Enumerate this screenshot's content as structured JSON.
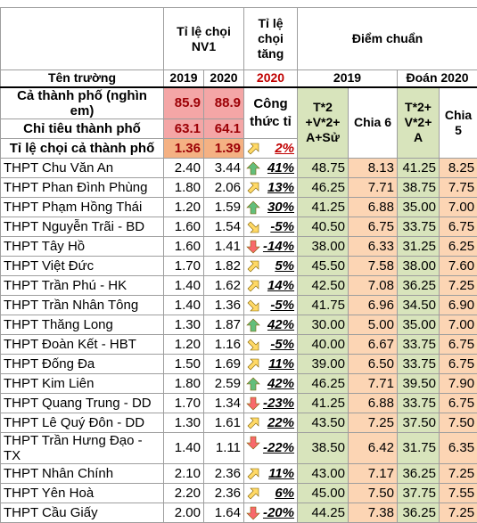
{
  "table": {
    "header": {
      "nv1": "Tỉ lệ chọi NV1",
      "tang": "Tỉ lệ chọi tăng",
      "diem": "Điểm chuẩn",
      "ten": "Tên trường",
      "y2019": "2019",
      "y2020": "2020",
      "tang_year": "2020",
      "d2019": "2019",
      "d2020": "Đoán 2020"
    },
    "formula": "Công thức tỉ",
    "score_headers": [
      "T*2\n+V*2+\nA+Sử",
      "Chia 6",
      "T*2+\nV*2+\nA",
      "Chia 5"
    ],
    "summary": [
      {
        "name": "Cả thành phố (nghìn em)",
        "v2019": "85.9",
        "v2020": "88.9"
      },
      {
        "name": "Chỉ tiêu thành phố",
        "v2019": "63.1",
        "v2020": "64.1"
      },
      {
        "name": "Tỉ lệ chọi cả thành phố",
        "v2019": "1.36",
        "v2020": "1.39",
        "change": "2%"
      }
    ],
    "rows": [
      [
        "THPT Chu Văn An",
        "2.40",
        "3.44",
        "41%",
        "48.75",
        "8.13",
        "41.25",
        "8.25"
      ],
      [
        "THPT Phan Đình Phùng",
        "1.80",
        "2.06",
        "13%",
        "46.25",
        "7.71",
        "38.75",
        "7.75"
      ],
      [
        "THPT Phạm Hồng Thái",
        "1.20",
        "1.59",
        "30%",
        "41.25",
        "6.88",
        "35.00",
        "7.00"
      ],
      [
        "THPT Nguyễn Trãi - BD",
        "1.60",
        "1.54",
        "-5%",
        "40.50",
        "6.75",
        "33.75",
        "6.75"
      ],
      [
        "THPT Tây Hồ",
        "1.60",
        "1.41",
        "-14%",
        "38.00",
        "6.33",
        "31.25",
        "6.25"
      ],
      [
        "THPT Việt Đức",
        "1.70",
        "1.82",
        "5%",
        "45.50",
        "7.58",
        "38.00",
        "7.60"
      ],
      [
        "THPT Trần Phú - HK",
        "1.40",
        "1.62",
        "14%",
        "42.50",
        "7.08",
        "36.25",
        "7.25"
      ],
      [
        "THPT Trần Nhân Tông",
        "1.40",
        "1.36",
        "-5%",
        "41.75",
        "6.96",
        "34.50",
        "6.90"
      ],
      [
        "THPT Thăng Long",
        "1.30",
        "1.87",
        "42%",
        "30.00",
        "5.00",
        "35.00",
        "7.00"
      ],
      [
        "THPT Đoàn Kết - HBT",
        "1.20",
        "1.16",
        "-5%",
        "40.00",
        "6.67",
        "33.75",
        "6.75"
      ],
      [
        "THPT Đống Đa",
        "1.50",
        "1.69",
        "11%",
        "39.00",
        "6.50",
        "33.75",
        "6.75"
      ],
      [
        "THPT Kim Liên",
        "1.80",
        "2.59",
        "42%",
        "46.25",
        "7.71",
        "39.50",
        "7.90"
      ],
      [
        "THPT Quang Trung - DD",
        "1.70",
        "1.34",
        "-23%",
        "41.25",
        "6.88",
        "33.75",
        "6.75"
      ],
      [
        "THPT Lê Quý Đôn - DD",
        "1.30",
        "1.61",
        "22%",
        "43.50",
        "7.25",
        "37.50",
        "7.50"
      ],
      [
        "THPT Trần Hưng Đạo - TX",
        "1.40",
        "1.11",
        "-22%",
        "38.50",
        "6.42",
        "31.75",
        "6.35"
      ],
      [
        "THPT Nhân Chính",
        "2.10",
        "2.36",
        "11%",
        "43.00",
        "7.17",
        "36.25",
        "7.25"
      ],
      [
        "THPT Yên Hoà",
        "2.20",
        "2.36",
        "6%",
        "45.00",
        "7.50",
        "37.75",
        "7.55"
      ],
      [
        "THPT Cầu Giấy",
        "2.00",
        "1.64",
        "-20%",
        "44.25",
        "7.38",
        "36.25",
        "7.25"
      ]
    ]
  }
}
